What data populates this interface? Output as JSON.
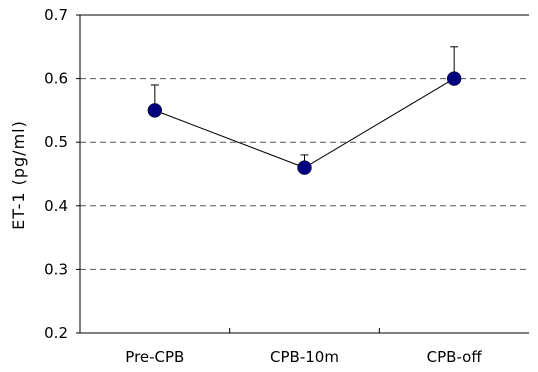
{
  "chart_data": {
    "type": "line",
    "categories": [
      "Pre-CPB",
      "CPB-10m",
      "CPB-off"
    ],
    "series": [
      {
        "values": [
          0.55,
          0.46,
          0.6
        ],
        "error_upper": [
          0.59,
          0.48,
          0.65
        ],
        "color": "#00007f"
      }
    ],
    "xlabel": "",
    "ylabel": "ET-1 (pg/ml)",
    "ylim": [
      0.2,
      0.7
    ],
    "yticks": [
      "0.2",
      "0.3",
      "0.4",
      "0.5",
      "0.6",
      "0.7"
    ],
    "grid": true,
    "grid_style": "dashed",
    "legend": "none"
  }
}
